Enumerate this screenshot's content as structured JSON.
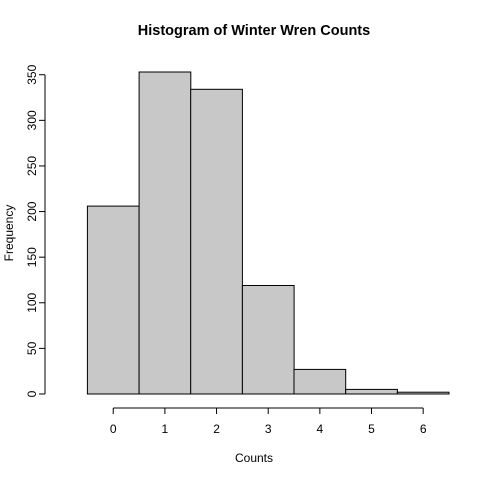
{
  "chart_data": {
    "type": "bar",
    "title": "Histogram of Winter Wren Counts",
    "xlabel": "Counts",
    "ylabel": "Frequency",
    "bins": [
      {
        "from": -0.5,
        "to": 0.5,
        "value": 206
      },
      {
        "from": 0.5,
        "to": 1.5,
        "value": 353
      },
      {
        "from": 1.5,
        "to": 2.5,
        "value": 334
      },
      {
        "from": 2.5,
        "to": 3.5,
        "value": 119
      },
      {
        "from": 3.5,
        "to": 4.5,
        "value": 27
      },
      {
        "from": 4.5,
        "to": 5.5,
        "value": 5
      },
      {
        "from": 5.5,
        "to": 6.5,
        "value": 2
      }
    ],
    "x_ticks": [
      0,
      1,
      2,
      3,
      4,
      5,
      6
    ],
    "y_ticks": [
      0,
      50,
      100,
      150,
      200,
      250,
      300,
      350
    ],
    "xlim": [
      -1.05,
      6.5
    ],
    "ylim": [
      0,
      353
    ],
    "bar_fill": "#c8c8c8",
    "bar_stroke": "#000000",
    "grid": false,
    "legend": "none"
  }
}
